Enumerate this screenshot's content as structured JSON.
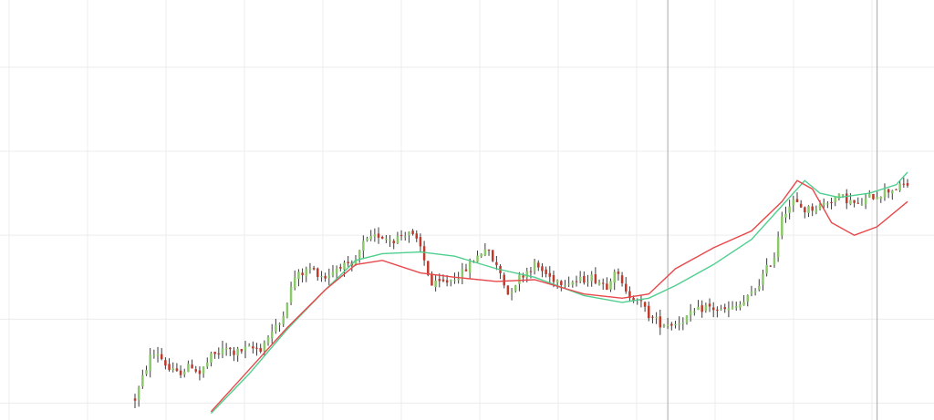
{
  "chart_data": {
    "type": "candlestick",
    "title": "",
    "xlabel": "",
    "ylabel": "",
    "grid": true,
    "legend": "none",
    "xlim": [
      0,
      203
    ],
    "ylim": [
      -20,
      480
    ],
    "colors": {
      "background": "#ffffff",
      "grid": "#ececec",
      "up": "#8bc96a",
      "down": "#c0392b",
      "wick": "#3a3a3a",
      "ma_fast": "#e8484b",
      "ma_slow": "#4fcf8e",
      "crosshair": "#a8a8a8"
    },
    "keypoints": [
      [
        0,
        5
      ],
      [
        4,
        55
      ],
      [
        6,
        60
      ],
      [
        9,
        40
      ],
      [
        11,
        35
      ],
      [
        15,
        45
      ],
      [
        17,
        35
      ],
      [
        20,
        55
      ],
      [
        24,
        65
      ],
      [
        26,
        60
      ],
      [
        30,
        65
      ],
      [
        33,
        65
      ],
      [
        35,
        80
      ],
      [
        38,
        95
      ],
      [
        42,
        150
      ],
      [
        46,
        160
      ],
      [
        50,
        150
      ],
      [
        54,
        165
      ],
      [
        57,
        160
      ],
      [
        60,
        190
      ],
      [
        64,
        200
      ],
      [
        68,
        195
      ],
      [
        72,
        205
      ],
      [
        75,
        185
      ],
      [
        78,
        140
      ],
      [
        82,
        145
      ],
      [
        86,
        155
      ],
      [
        88,
        165
      ],
      [
        92,
        185
      ],
      [
        96,
        155
      ],
      [
        98,
        130
      ],
      [
        101,
        150
      ],
      [
        105,
        165
      ],
      [
        109,
        150
      ],
      [
        112,
        145
      ],
      [
        116,
        145
      ],
      [
        120,
        150
      ],
      [
        124,
        140
      ],
      [
        126,
        160
      ],
      [
        129,
        130
      ],
      [
        132,
        125
      ],
      [
        135,
        105
      ],
      [
        138,
        95
      ],
      [
        142,
        95
      ],
      [
        146,
        105
      ],
      [
        150,
        115
      ],
      [
        154,
        110
      ],
      [
        157,
        112
      ],
      [
        160,
        120
      ],
      [
        163,
        135
      ],
      [
        166,
        160
      ],
      [
        168,
        175
      ],
      [
        170,
        225
      ],
      [
        173,
        240
      ],
      [
        176,
        230
      ],
      [
        180,
        235
      ],
      [
        184,
        245
      ],
      [
        186,
        245
      ],
      [
        190,
        235
      ],
      [
        193,
        245
      ],
      [
        196,
        250
      ],
      [
        199,
        255
      ],
      [
        203,
        260
      ]
    ],
    "ma_fast_points": [
      [
        20,
        -10
      ],
      [
        30,
        40
      ],
      [
        40,
        90
      ],
      [
        50,
        135
      ],
      [
        58,
        165
      ],
      [
        65,
        170
      ],
      [
        75,
        155
      ],
      [
        84,
        150
      ],
      [
        95,
        145
      ],
      [
        105,
        147
      ],
      [
        118,
        130
      ],
      [
        128,
        125
      ],
      [
        135,
        130
      ],
      [
        142,
        160
      ],
      [
        152,
        185
      ],
      [
        162,
        205
      ],
      [
        170,
        240
      ],
      [
        174,
        265
      ],
      [
        178,
        255
      ],
      [
        183,
        215
      ],
      [
        189,
        200
      ],
      [
        195,
        210
      ],
      [
        203,
        240
      ]
    ],
    "ma_slow_points": [
      [
        20,
        -12
      ],
      [
        30,
        35
      ],
      [
        40,
        88
      ],
      [
        50,
        135
      ],
      [
        58,
        170
      ],
      [
        65,
        178
      ],
      [
        75,
        180
      ],
      [
        84,
        175
      ],
      [
        95,
        160
      ],
      [
        105,
        150
      ],
      [
        118,
        128
      ],
      [
        128,
        120
      ],
      [
        135,
        125
      ],
      [
        142,
        140
      ],
      [
        152,
        165
      ],
      [
        162,
        195
      ],
      [
        170,
        235
      ],
      [
        176,
        265
      ],
      [
        180,
        250
      ],
      [
        185,
        245
      ],
      [
        193,
        250
      ],
      [
        200,
        260
      ],
      [
        203,
        275
      ]
    ],
    "crosshair_x": [
      140,
      195
    ]
  }
}
